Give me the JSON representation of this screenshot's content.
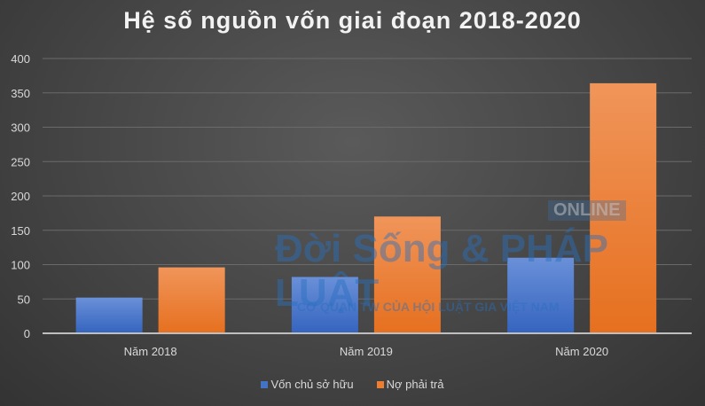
{
  "chart_data": {
    "type": "bar",
    "title": "Hệ số nguồn vốn giai đoạn 2018-2020",
    "categories": [
      "Năm 2018",
      "Năm 2019",
      "Năm 2020"
    ],
    "series": [
      {
        "name": "Vốn chủ sở hữu",
        "values": [
          52,
          82,
          110
        ],
        "color": "#4472c4"
      },
      {
        "name": "Nợ phải trả",
        "values": [
          96,
          170,
          364
        ],
        "color": "#ed7d31"
      }
    ],
    "xlabel": "",
    "ylabel": "",
    "ylim": [
      0,
      400
    ],
    "yticks": [
      0,
      50,
      100,
      150,
      200,
      250,
      300,
      350,
      400
    ],
    "grid": true,
    "legend": "bottom"
  },
  "watermark": {
    "online": "ONLINE",
    "brand": "Đời Sống & PHÁP LUẬT",
    "tagline": "CƠ QUAN TW CỦA HỘI LUẬT GIA VIỆT NAM"
  }
}
